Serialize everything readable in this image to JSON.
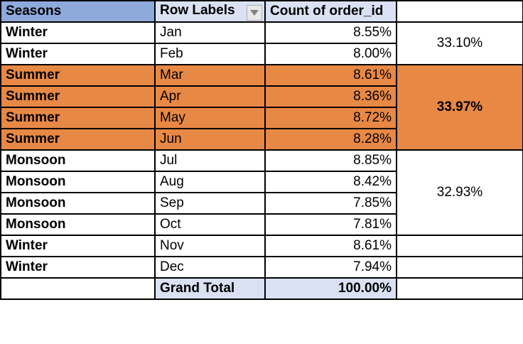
{
  "headers": {
    "seasons": "Seasons",
    "row_labels": "Row Labels",
    "count": "Count of order_id",
    "extra": ""
  },
  "rows": [
    {
      "season": "Winter",
      "month": "Jan",
      "pct": "8.55%"
    },
    {
      "season": "Winter",
      "month": "Feb",
      "pct": "8.00%"
    },
    {
      "season": "Summer",
      "month": "Mar",
      "pct": "8.61%"
    },
    {
      "season": "Summer",
      "month": "Apr",
      "pct": "8.36%"
    },
    {
      "season": "Summer",
      "month": "May",
      "pct": "8.72%"
    },
    {
      "season": "Summer",
      "month": "Jun",
      "pct": "8.28%"
    },
    {
      "season": "Monsoon",
      "month": "Jul",
      "pct": "8.85%"
    },
    {
      "season": "Monsoon",
      "month": "Aug",
      "pct": "8.42%"
    },
    {
      "season": "Monsoon",
      "month": "Sep",
      "pct": "7.85%"
    },
    {
      "season": "Monsoon",
      "month": "Oct",
      "pct": "7.81%"
    },
    {
      "season": "Winter",
      "month": "Nov",
      "pct": "8.61%"
    },
    {
      "season": "Winter",
      "month": "Dec",
      "pct": "7.94%"
    }
  ],
  "season_totals": {
    "winter_early": "33.10%",
    "summer": "33.97%",
    "monsoon": "32.93%"
  },
  "grand_total": {
    "label": "Grand Total",
    "value": "100.00%"
  },
  "colors": {
    "summer_fill": "#e88845",
    "header_fill": "#d9e1f2",
    "seasons_header_fill": "#8ea9db"
  }
}
